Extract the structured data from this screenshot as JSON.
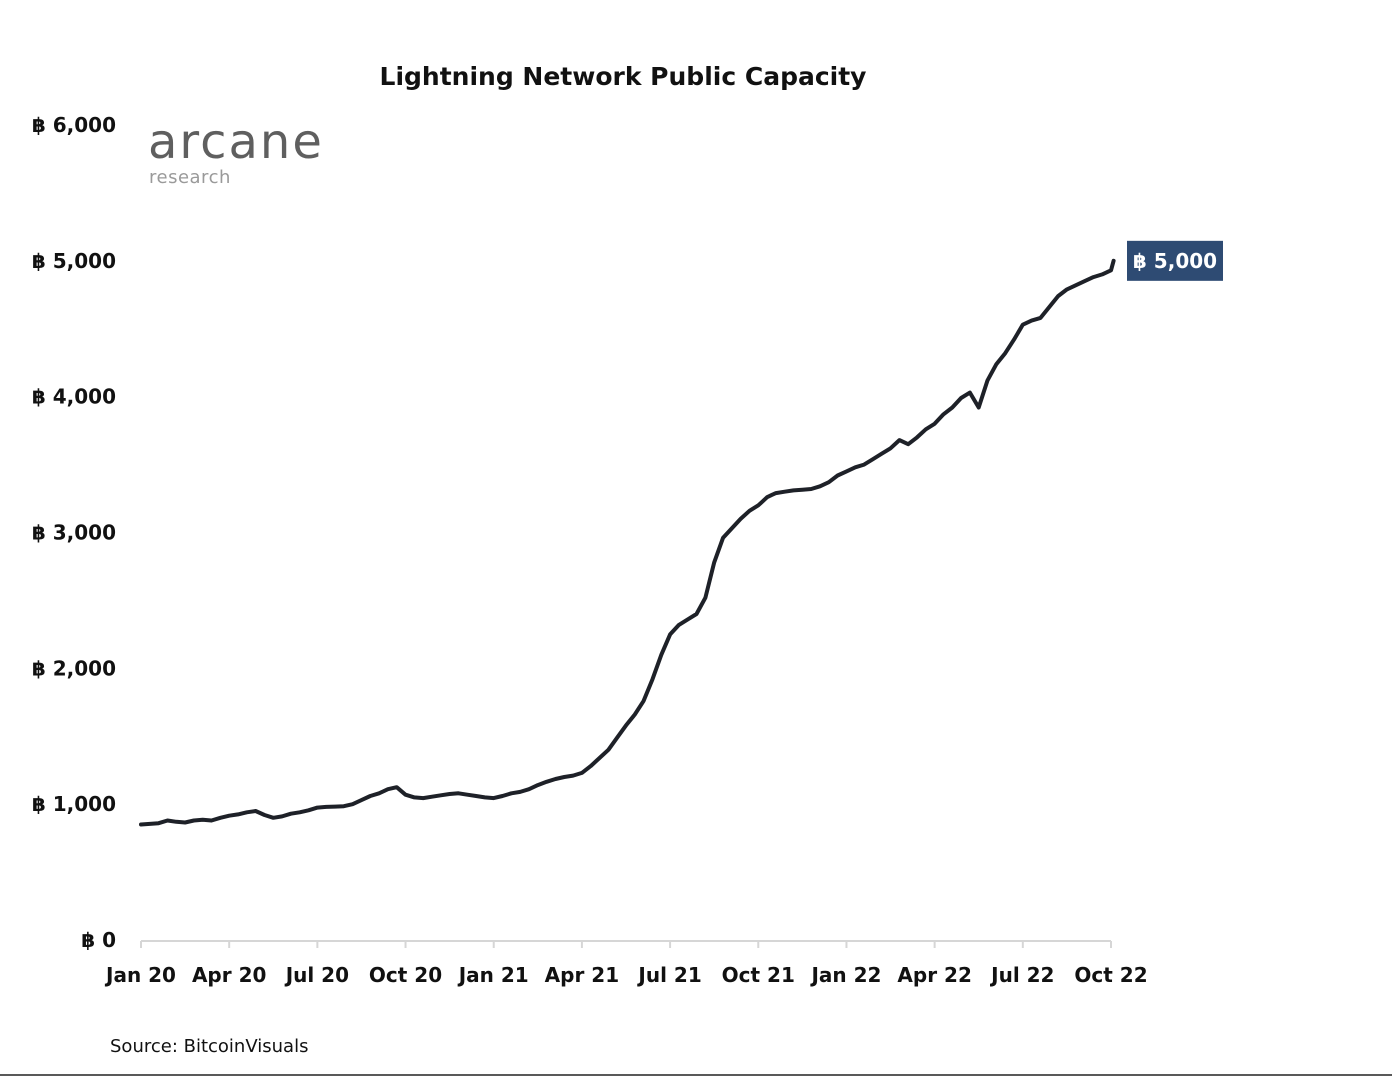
{
  "chart_data": {
    "type": "line",
    "title": "Lightning Network Public Capacity",
    "xlabel": "",
    "ylabel": "",
    "ylim": [
      0,
      6000
    ],
    "currency_symbol": "฿",
    "x_tick_labels": [
      "Jan 20",
      "Apr 20",
      "Jul 20",
      "Oct 20",
      "Jan 21",
      "Apr 21",
      "Jul 21",
      "Oct 21",
      "Jan 22",
      "Apr 22",
      "Jul 22",
      "Oct 22"
    ],
    "y_tick_labels": [
      "฿ 0",
      "฿ 1,000",
      "฿ 2,000",
      "฿ 3,000",
      "฿ 4,000",
      "฿ 5,000",
      "฿ 6,000"
    ],
    "y_tick_values": [
      0,
      1000,
      2000,
      3000,
      4000,
      5000,
      6000
    ],
    "grid": false,
    "legend": "none",
    "line_color": "#1e2128",
    "series": [
      {
        "x": [
          0,
          0.1,
          0.2,
          0.3,
          0.4,
          0.5,
          0.6,
          0.7,
          0.8,
          0.9,
          1.0,
          1.1,
          1.2,
          1.3,
          1.4,
          1.5,
          1.6,
          1.7,
          1.8,
          1.9,
          2.0,
          2.1,
          2.2,
          2.3,
          2.4,
          2.5,
          2.6,
          2.7,
          2.8,
          2.9,
          3.0,
          3.1,
          3.2,
          3.3,
          3.4,
          3.5,
          3.6,
          3.7,
          3.8,
          3.9,
          4.0,
          4.1,
          4.2,
          4.3,
          4.4,
          4.5,
          4.6,
          4.7,
          4.8,
          4.9,
          5.0,
          5.1,
          5.2,
          5.3,
          5.4,
          5.5,
          5.6,
          5.7,
          5.8,
          5.9,
          6.0,
          6.1,
          6.2,
          6.3,
          6.4,
          6.5,
          6.6,
          6.7,
          6.8,
          6.9,
          7.0,
          7.05,
          7.1,
          7.15,
          7.2,
          7.3,
          7.4,
          7.5,
          7.6,
          7.7,
          7.8,
          7.9,
          8.0,
          8.1,
          8.2,
          8.3,
          8.4,
          8.5,
          8.6,
          8.7,
          8.8,
          8.9,
          9.0,
          9.1,
          9.2,
          9.3,
          9.4,
          9.5,
          9.6,
          9.7,
          9.8,
          9.9,
          10.0,
          10.1,
          10.2,
          10.3,
          10.4,
          10.5,
          10.6,
          10.7,
          10.8,
          10.9,
          11.0,
          11.03
        ],
        "y": [
          850,
          855,
          860,
          880,
          870,
          865,
          880,
          885,
          880,
          900,
          915,
          925,
          940,
          950,
          920,
          900,
          910,
          930,
          940,
          955,
          975,
          980,
          982,
          985,
          1000,
          1030,
          1060,
          1080,
          1110,
          1125,
          1070,
          1050,
          1045,
          1055,
          1065,
          1075,
          1080,
          1070,
          1060,
          1050,
          1045,
          1060,
          1080,
          1090,
          1110,
          1140,
          1165,
          1185,
          1200,
          1210,
          1230,
          1280,
          1340,
          1400,
          1490,
          1580,
          1660,
          1760,
          1920,
          2100,
          2250,
          2320,
          2360,
          2400,
          2520,
          2780,
          2960,
          3030,
          3100,
          3160,
          3200,
          3230,
          3260,
          3275,
          3290,
          3300,
          3310,
          3315,
          3320,
          3340,
          3370,
          3420,
          3450,
          3480,
          3500,
          3540,
          3580,
          3620,
          3680,
          3650,
          3700,
          3760,
          3800,
          3870,
          3920,
          3990,
          4030,
          3920,
          4120,
          4240,
          4320,
          4420,
          4530,
          4560,
          4580,
          4660,
          4740,
          4790,
          4820,
          4850,
          4880,
          4900,
          4930,
          5000
        ]
      }
    ],
    "callout": {
      "label": "฿ 5,000",
      "value": 5000,
      "background": "#2e4b73"
    }
  },
  "logo": {
    "main": "arcane",
    "sub": "research"
  },
  "source": "Source: BitcoinVisuals"
}
